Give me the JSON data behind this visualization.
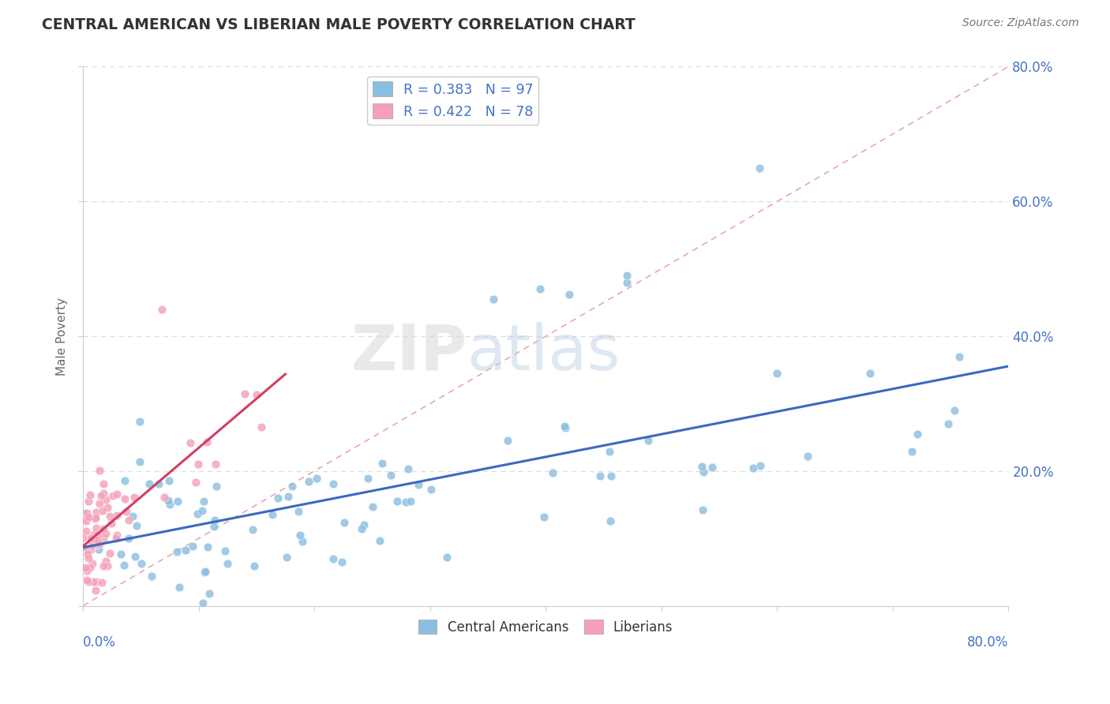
{
  "title": "CENTRAL AMERICAN VS LIBERIAN MALE POVERTY CORRELATION CHART",
  "source": "Source: ZipAtlas.com",
  "ylabel": "Male Poverty",
  "x_range": [
    0.0,
    0.8
  ],
  "y_range": [
    0.0,
    0.8
  ],
  "blue_R": 0.383,
  "blue_N": 97,
  "pink_R": 0.422,
  "pink_N": 78,
  "background_color": "#ffffff",
  "grid_color": "#dddddd",
  "title_color": "#333333",
  "blue_dot_color": "#8bbfe0",
  "pink_dot_color": "#f4a0b8",
  "blue_line_color": "#3a6abf",
  "pink_line_color": "#d04060",
  "diag_line_color": "#e8a0a8",
  "source_color": "#777777",
  "legend_label_color": "#4472c4",
  "raxis_label_color": "#4472c4",
  "xaxis_label_color": "#4472c4"
}
